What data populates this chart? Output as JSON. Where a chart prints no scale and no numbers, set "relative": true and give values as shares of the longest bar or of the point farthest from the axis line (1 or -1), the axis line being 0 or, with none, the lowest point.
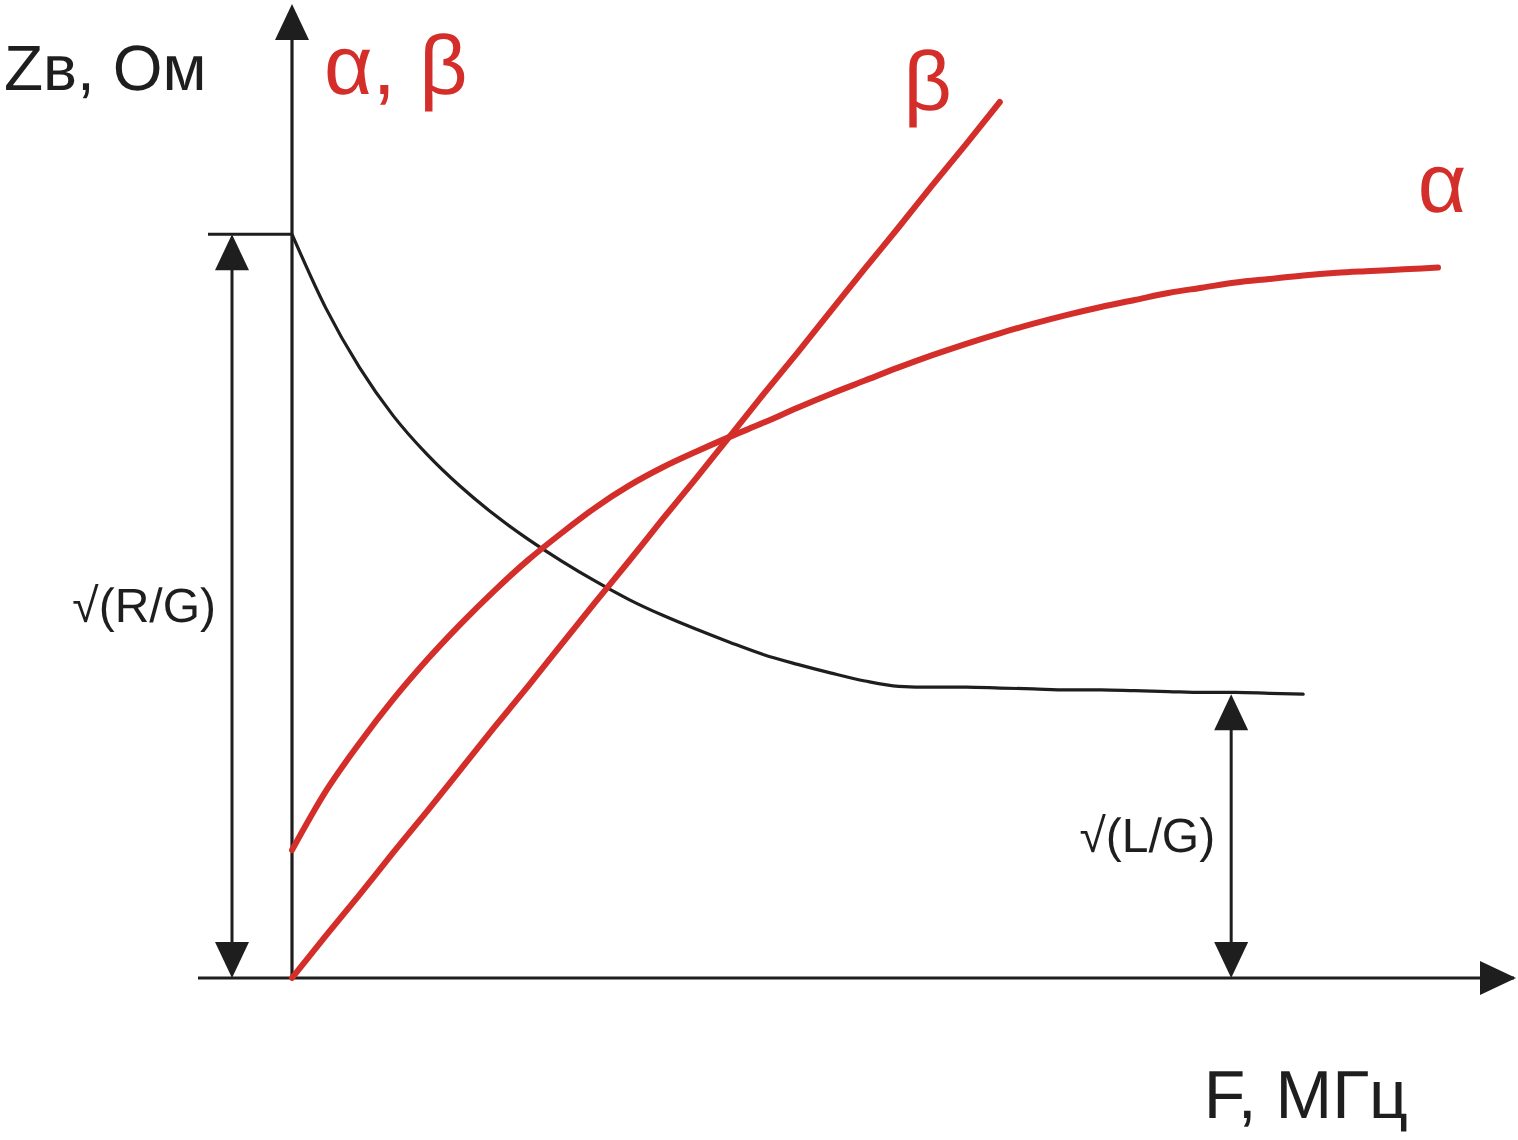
{
  "chart_data": {
    "type": "line",
    "relative": true,
    "xlabel": "F, МГц",
    "ylabel": "Zв, Ом",
    "categories": [
      null,
      null,
      null,
      null,
      null,
      null,
      null,
      null,
      null,
      null,
      null,
      null,
      null,
      null,
      null,
      null,
      null,
      null,
      null,
      null,
      null,
      null,
      null,
      null,
      null,
      null,
      null,
      null,
      null,
      null,
      null,
      null,
      null,
      null,
      null
    ],
    "series": [
      {
        "color": "#1e1e1e",
        "values": [
          0.849,
          0.765,
          0.697,
          0.642,
          0.598,
          0.561,
          0.529,
          0.501,
          0.476,
          0.453,
          0.432,
          0.414,
          0.398,
          0.383,
          0.369,
          0.358,
          0.348,
          0.339,
          0.333,
          0.332,
          0.332,
          0.331,
          0.33,
          0.329,
          0.329,
          0.328,
          0.327,
          0.326,
          0.326,
          0.325,
          0.324,
          null,
          null,
          null,
          null
        ]
      },
      {
        "name": "α",
        "color": "#d42e2a",
        "values": [
          0.146,
          0.213,
          0.268,
          0.318,
          0.363,
          0.404,
          0.442,
          0.477,
          0.508,
          0.537,
          0.562,
          0.583,
          0.601,
          0.618,
          0.634,
          0.651,
          0.667,
          0.682,
          0.697,
          0.711,
          0.724,
          0.736,
          0.747,
          0.757,
          0.766,
          0.774,
          0.782,
          0.788,
          0.794,
          0.798,
          0.802,
          0.805,
          0.807,
          0.809,
          0.811
        ]
      },
      {
        "name": "β",
        "color": "#d42e2a",
        "values": [
          0,
          0.048,
          0.095,
          0.143,
          0.19,
          0.238,
          0.286,
          0.333,
          0.381,
          0.429,
          0.476,
          0.524,
          0.571,
          0.619,
          0.667,
          0.714,
          0.762,
          0.81,
          0.857,
          0.905,
          0.952,
          1,
          null,
          null,
          null,
          null,
          null,
          null,
          null,
          null,
          null,
          null,
          null,
          null,
          null
        ]
      }
    ],
    "annotations": [
      "α, β",
      "√(R/G)",
      "√(L/G)"
    ]
  }
}
